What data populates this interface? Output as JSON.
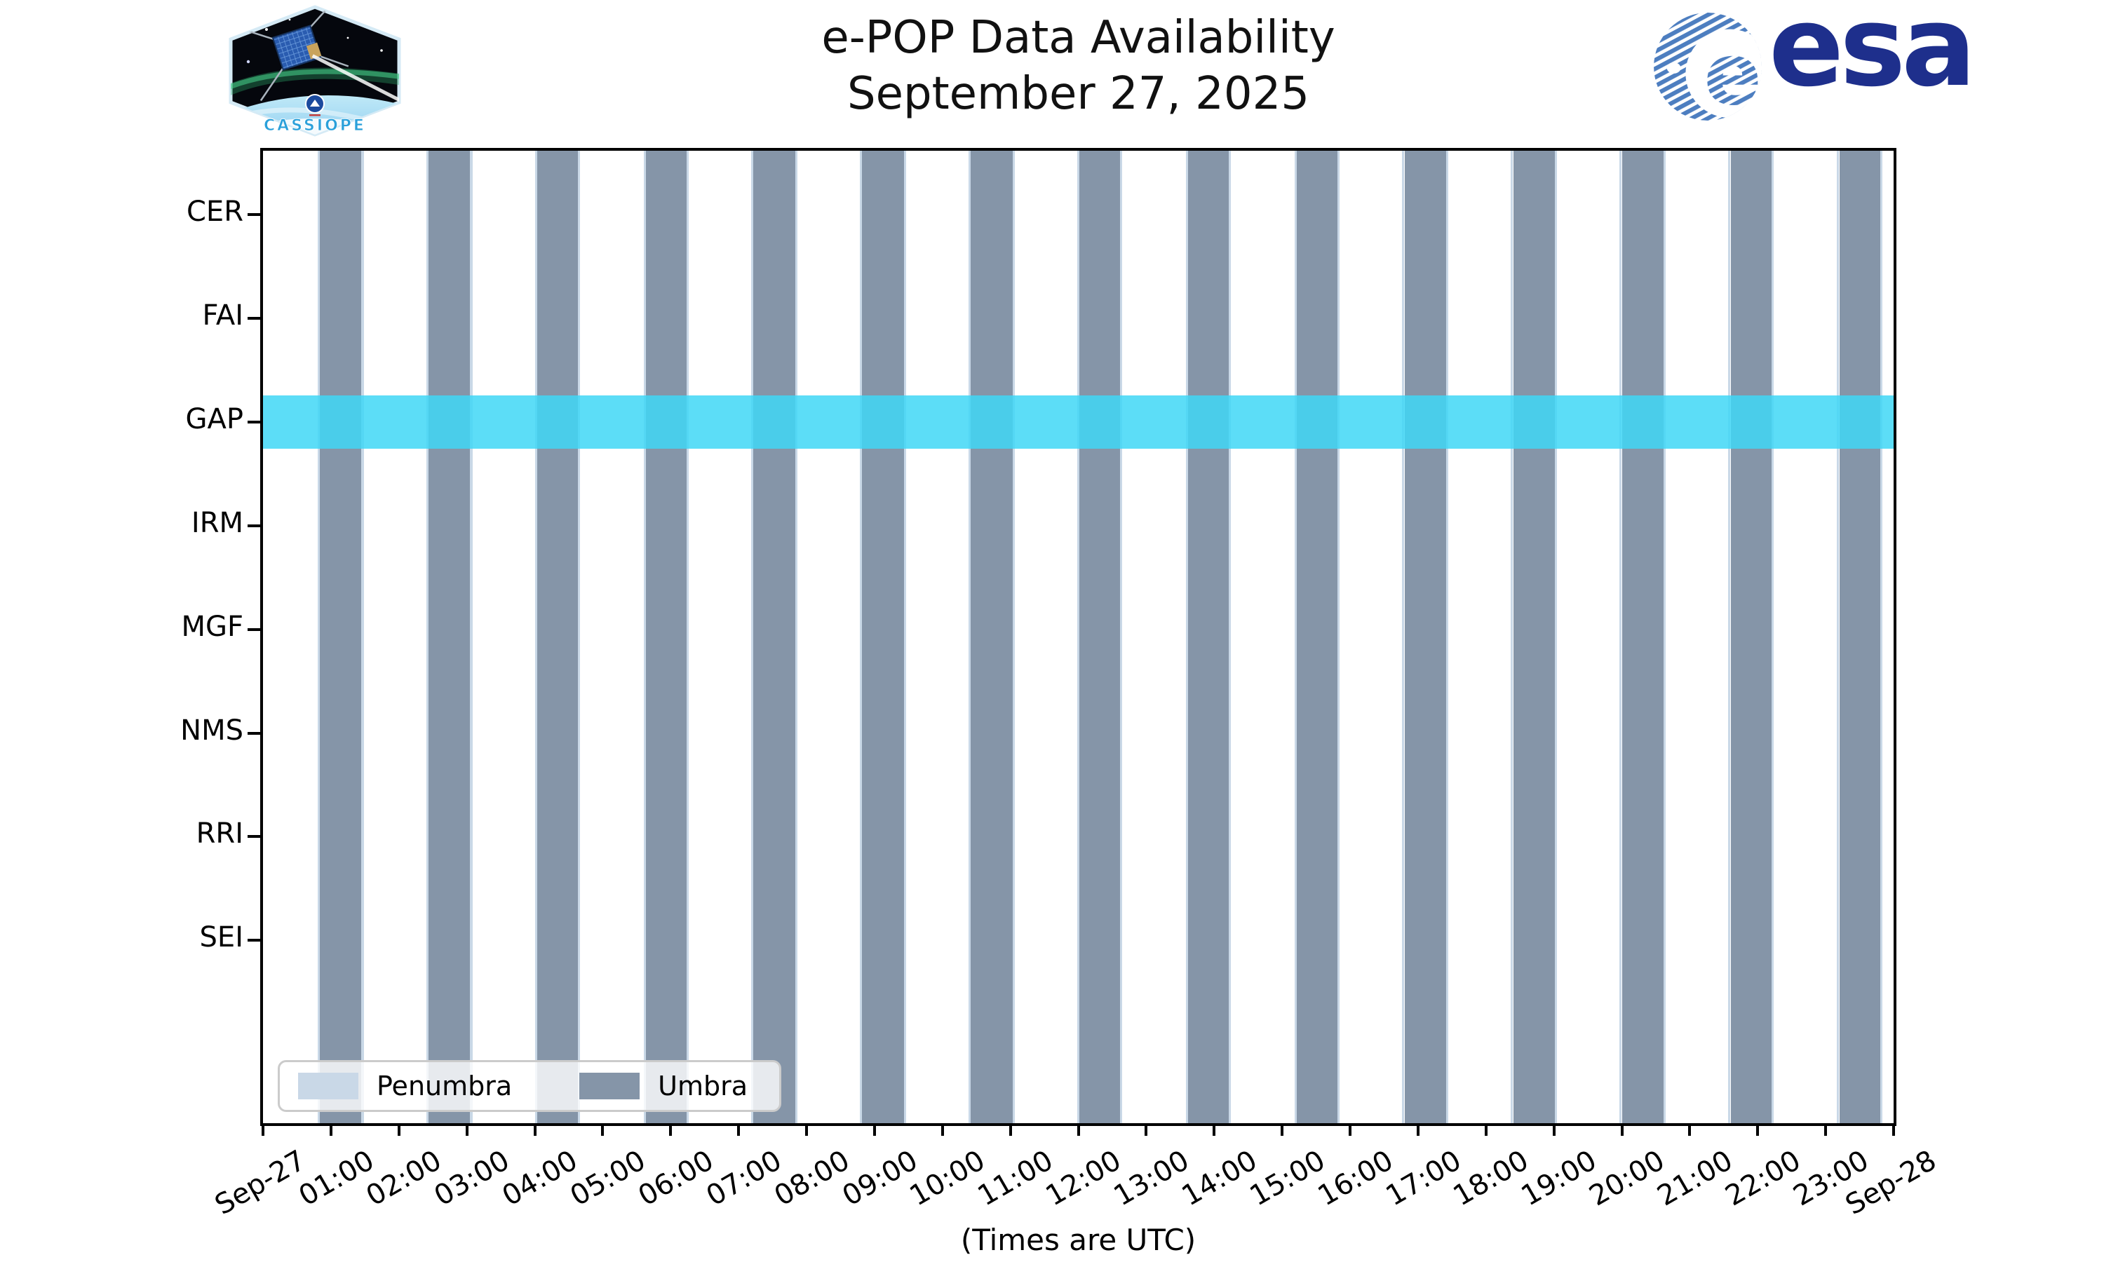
{
  "branding": {
    "cassiope_patch_label": "CASSIOPE",
    "esa_wordmark": "esa"
  },
  "chart_data": {
    "type": "timeline-availability",
    "title": "e-POP Data Availability",
    "subtitle": "September 27, 2025",
    "xlabel": "(Times are UTC)",
    "x_range_hours": [
      0,
      24
    ],
    "x_tick_labels": [
      "Sep-27",
      "01:00",
      "02:00",
      "03:00",
      "04:00",
      "05:00",
      "06:00",
      "07:00",
      "08:00",
      "09:00",
      "10:00",
      "11:00",
      "12:00",
      "13:00",
      "14:00",
      "15:00",
      "16:00",
      "17:00",
      "18:00",
      "19:00",
      "20:00",
      "21:00",
      "22:00",
      "23:00",
      "Sep-28"
    ],
    "instruments": [
      "CER",
      "FAI",
      "GAP",
      "IRM",
      "MGF",
      "NMS",
      "RRI",
      "SEI"
    ],
    "availability_bands": [
      {
        "instrument": "GAP",
        "start": "00:00",
        "end": "24:00"
      }
    ],
    "umbra_windows": [
      {
        "start": "00:50",
        "end": "01:27"
      },
      {
        "start": "02:26",
        "end": "03:03"
      },
      {
        "start": "04:02",
        "end": "04:38"
      },
      {
        "start": "05:38",
        "end": "06:14"
      },
      {
        "start": "07:13",
        "end": "07:50"
      },
      {
        "start": "08:49",
        "end": "09:26"
      },
      {
        "start": "10:25",
        "end": "11:02"
      },
      {
        "start": "12:01",
        "end": "12:37"
      },
      {
        "start": "13:37",
        "end": "14:13"
      },
      {
        "start": "15:13",
        "end": "15:49"
      },
      {
        "start": "16:48",
        "end": "17:25"
      },
      {
        "start": "18:24",
        "end": "19:01"
      },
      {
        "start": "20:00",
        "end": "20:37"
      },
      {
        "start": "21:36",
        "end": "22:12"
      },
      {
        "start": "23:12",
        "end": "23:48"
      }
    ],
    "penumbra_minutes_each_side": 2,
    "legend": {
      "entries": [
        {
          "label": "Penumbra",
          "color": "#c9d8e7"
        },
        {
          "label": "Umbra",
          "color": "#8595a8"
        }
      ]
    },
    "colors": {
      "umbra": "#8595a8",
      "penumbra": "#c9d8e7",
      "gap_band": "#3fd7f6",
      "gap_band_alpha": 0.85,
      "spine": "#000000",
      "esa_wordmark_blue": "#1e2f8c",
      "esa_globe_blue": "#4d7ec0"
    }
  }
}
